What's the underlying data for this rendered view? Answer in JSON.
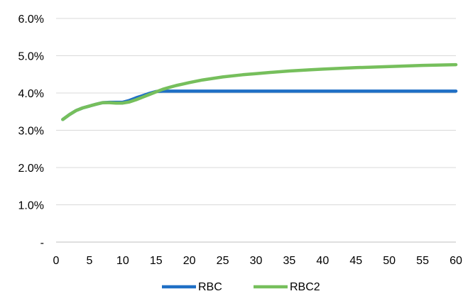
{
  "chart_data": {
    "type": "line",
    "title": "",
    "xlabel": "",
    "ylabel": "",
    "x_ticks": [
      0,
      5,
      10,
      15,
      20,
      25,
      30,
      35,
      40,
      45,
      50,
      55,
      60
    ],
    "y_ticks": [
      {
        "value": 0,
        "label": "-"
      },
      {
        "value": 0.01,
        "label": "1.0%"
      },
      {
        "value": 0.02,
        "label": "2.0%"
      },
      {
        "value": 0.03,
        "label": "3.0%"
      },
      {
        "value": 0.04,
        "label": "4.0%"
      },
      {
        "value": 0.05,
        "label": "5.0%"
      },
      {
        "value": 0.06,
        "label": "6.0%"
      }
    ],
    "xlim": [
      0,
      60
    ],
    "ylim": [
      0,
      0.06
    ],
    "grid": "horizontal",
    "legend_position": "bottom",
    "series": [
      {
        "name": "RBC",
        "color": "#1f6fc5",
        "x": [
          1,
          2,
          3,
          4,
          5,
          6,
          7,
          8,
          9,
          10,
          11,
          12,
          13,
          14,
          15,
          16,
          17,
          18,
          19,
          20,
          25,
          30,
          35,
          40,
          45,
          50,
          55,
          60
        ],
        "y": [
          0.0329,
          0.0342,
          0.0353,
          0.036,
          0.0365,
          0.037,
          0.0374,
          0.0375,
          0.0375,
          0.0375,
          0.038,
          0.0387,
          0.0393,
          0.0399,
          0.0404,
          0.0405,
          0.0405,
          0.0405,
          0.0405,
          0.0405,
          0.0405,
          0.0405,
          0.0405,
          0.0405,
          0.0405,
          0.0405,
          0.0405,
          0.0405
        ]
      },
      {
        "name": "RBC2",
        "color": "#76bf5c",
        "x": [
          1,
          2,
          3,
          4,
          5,
          6,
          7,
          8,
          9,
          10,
          11,
          12,
          13,
          14,
          15,
          16,
          17,
          18,
          19,
          20,
          22,
          25,
          28,
          30,
          32,
          35,
          38,
          40,
          45,
          50,
          55,
          60
        ],
        "y": [
          0.0329,
          0.0342,
          0.0353,
          0.036,
          0.0365,
          0.037,
          0.0374,
          0.0374,
          0.0373,
          0.0373,
          0.0376,
          0.0382,
          0.0389,
          0.0396,
          0.0403,
          0.041,
          0.0415,
          0.042,
          0.0424,
          0.0428,
          0.0435,
          0.0443,
          0.0449,
          0.0452,
          0.0455,
          0.0459,
          0.0462,
          0.0464,
          0.0468,
          0.0471,
          0.0474,
          0.0476
        ]
      }
    ]
  }
}
